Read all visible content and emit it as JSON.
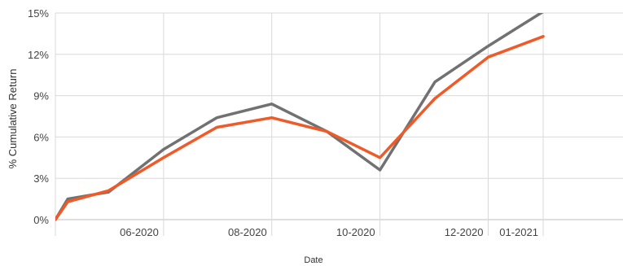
{
  "chart_data": {
    "type": "line",
    "title": "",
    "xlabel": "Date",
    "ylabel": "% Cumulative Return",
    "ylim": [
      0,
      15
    ],
    "xlim": [
      "2020-04-01",
      "2021-02-15"
    ],
    "yticks": [
      {
        "value": 0,
        "label": "0%"
      },
      {
        "value": 3,
        "label": "3%"
      },
      {
        "value": 6,
        "label": "6%"
      },
      {
        "value": 9,
        "label": "9%"
      },
      {
        "value": 12,
        "label": "12%"
      },
      {
        "value": 15,
        "label": "15%"
      }
    ],
    "xticks": [
      {
        "date": "2020-06-01",
        "label": "06-2020"
      },
      {
        "date": "2020-08-01",
        "label": "08-2020"
      },
      {
        "date": "2020-10-01",
        "label": "10-2020"
      },
      {
        "date": "2020-12-01",
        "label": "12-2020"
      },
      {
        "date": "2021-01-01",
        "label": "01-2021"
      }
    ],
    "grid": true,
    "legend": "none",
    "series": [
      {
        "color": "#717171",
        "points": [
          {
            "x": "2020-04-01",
            "y": 0.0
          },
          {
            "x": "2020-04-08",
            "y": 1.5
          },
          {
            "x": "2020-05-01",
            "y": 2.0
          },
          {
            "x": "2020-06-01",
            "y": 5.1
          },
          {
            "x": "2020-07-01",
            "y": 7.4
          },
          {
            "x": "2020-08-01",
            "y": 8.4
          },
          {
            "x": "2020-09-01",
            "y": 6.4
          },
          {
            "x": "2020-10-01",
            "y": 3.6
          },
          {
            "x": "2020-11-01",
            "y": 10.0
          },
          {
            "x": "2020-12-01",
            "y": 12.6
          },
          {
            "x": "2021-01-01",
            "y": 15.1
          }
        ]
      },
      {
        "color": "#f05a28",
        "points": [
          {
            "x": "2020-04-01",
            "y": 0.0
          },
          {
            "x": "2020-04-08",
            "y": 1.3
          },
          {
            "x": "2020-05-01",
            "y": 2.1
          },
          {
            "x": "2020-06-01",
            "y": 4.5
          },
          {
            "x": "2020-07-01",
            "y": 6.7
          },
          {
            "x": "2020-08-01",
            "y": 7.4
          },
          {
            "x": "2020-09-01",
            "y": 6.4
          },
          {
            "x": "2020-10-01",
            "y": 4.5
          },
          {
            "x": "2020-11-01",
            "y": 8.8
          },
          {
            "x": "2020-12-01",
            "y": 11.8
          },
          {
            "x": "2021-01-01",
            "y": 13.3
          }
        ]
      }
    ],
    "gridline_color": "#d9d9d9",
    "axis_color": "#bfbfbf"
  }
}
